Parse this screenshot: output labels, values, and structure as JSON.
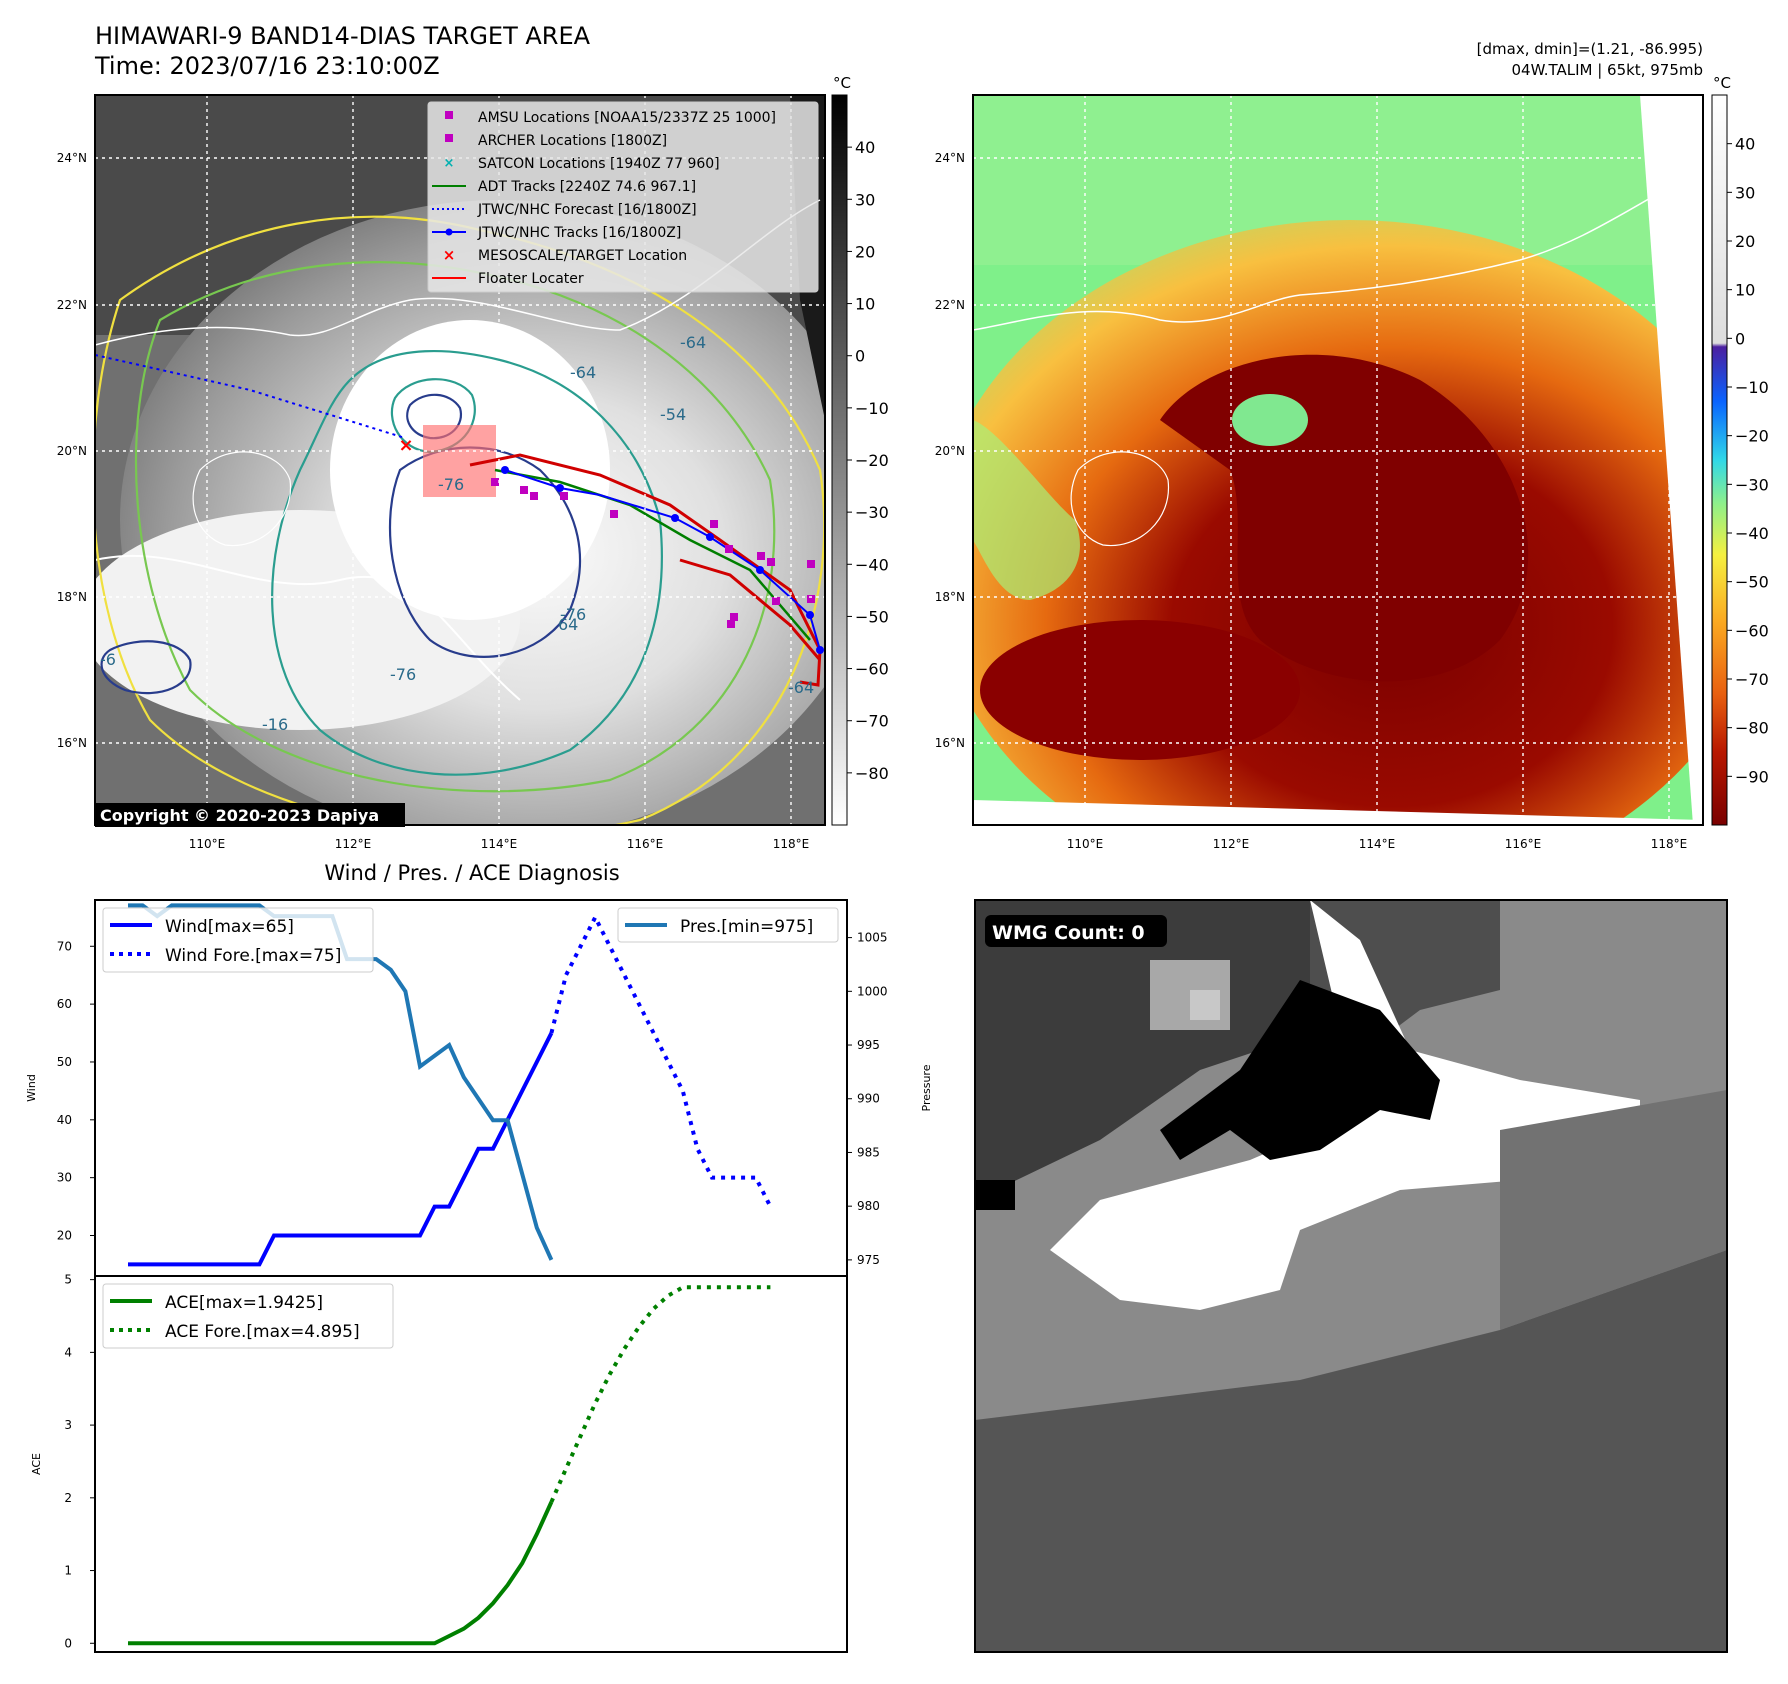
{
  "header": {
    "title": "HIMAWARI-9 BAND14-DIAS TARGET AREA",
    "time": "Time: 2023/07/16 23:10:00Z",
    "dminmax": "[dmax, dmin]=(1.21, -86.995)",
    "storm": "04W.TALIM | 65kt, 975mb"
  },
  "map": {
    "lon_ticks": [
      "110°E",
      "112°E",
      "114°E",
      "116°E",
      "118°E"
    ],
    "lat_ticks": [
      "24°N",
      "22°N",
      "20°N",
      "18°N",
      "16°N"
    ],
    "copyright": "Copyright © 2020-2023 Dapiya",
    "colorbar_unit": "°C",
    "gray_cbar_ticks": [
      "40",
      "30",
      "20",
      "10",
      "0",
      "−10",
      "−20",
      "−30",
      "−40",
      "−50",
      "−60",
      "−70",
      "−80"
    ],
    "color_cbar_ticks": [
      "40",
      "30",
      "20",
      "10",
      "0",
      "−10",
      "−20",
      "−30",
      "−40",
      "−50",
      "−60",
      "−70",
      "−80",
      "−90"
    ],
    "contour_labels": [
      "-64",
      "-54",
      "-64",
      "-16",
      "-76",
      "-76",
      "-76",
      "-6",
      "64",
      "-64"
    ],
    "legend": [
      {
        "label": "AMSU Locations [NOAA15/2337Z 25 1000]",
        "marker": "square",
        "color": "#c000c0"
      },
      {
        "label": "ARCHER Locations [1800Z]",
        "marker": "square",
        "color": "#c000c0"
      },
      {
        "label": "SATCON Locations [1940Z 77 960]",
        "marker": "x",
        "color": "#00b0b0"
      },
      {
        "label": "ADT Tracks [2240Z 74.6 967.1]",
        "marker": "line",
        "color": "#007f00"
      },
      {
        "label": "JTWC/NHC Forecast [16/1800Z]",
        "marker": "dotted",
        "color": "#0000ff"
      },
      {
        "label": "JTWC/NHC Tracks [16/1800Z]",
        "marker": "line-dot",
        "color": "#0000ff"
      },
      {
        "label": "MESOSCALE/TARGET Location",
        "marker": "x",
        "color": "#ff0000"
      },
      {
        "label": "Floater Locater",
        "marker": "line",
        "color": "#ff0000"
      }
    ]
  },
  "diag": {
    "title": "Wind / Pres. / ACE Diagnosis",
    "wind_ylabel": "Wind",
    "pres_ylabel": "Pressure",
    "ace_ylabel": "ACE",
    "legend_wind": "Wind[max=65]",
    "legend_wind_fore": "Wind Fore.[max=75]",
    "legend_pres": "Pres.[min=975]",
    "legend_ace": "ACE[max=1.9425]",
    "legend_ace_fore": "ACE Fore.[max=4.895]"
  },
  "wmg": {
    "label": "WMG Count: 0"
  },
  "colors": {
    "wind": "#0000ff",
    "pressure": "#1f77b4",
    "ace": "#008000",
    "contour_yellow": "#f0e040",
    "contour_green": "#78c850",
    "contour_teal": "#2a9d8f",
    "contour_navy": "#283c8c"
  },
  "chart_data": [
    {
      "type": "line",
      "name": "wind",
      "x": [
        0,
        1,
        2,
        3,
        4,
        5,
        6,
        7,
        8,
        9,
        10,
        11,
        12,
        13,
        14,
        15,
        16,
        17,
        18,
        19,
        20,
        21,
        22,
        23,
        24,
        25,
        26,
        27,
        28,
        29
      ],
      "series": [
        {
          "name": "Wind[max=65]",
          "style": "solid",
          "x": [
            0,
            1,
            2,
            3,
            4,
            5,
            6,
            7,
            8,
            9,
            10,
            11,
            12,
            13,
            14,
            15,
            16,
            17,
            18,
            19,
            20,
            21,
            22,
            23,
            24,
            25,
            26,
            27,
            28,
            29
          ],
          "values": [
            15,
            15,
            15,
            15,
            15,
            15,
            15,
            15,
            15,
            15,
            20,
            20,
            20,
            20,
            20,
            20,
            20,
            20,
            20,
            20,
            20,
            25,
            25,
            30,
            35,
            35,
            40,
            45,
            50,
            55
          ]
        },
        {
          "name": "Wind Fore.[max=75]",
          "style": "dotted",
          "x": [
            29,
            30,
            31,
            32,
            33,
            34,
            35,
            36,
            37,
            38,
            39,
            40,
            41,
            42,
            43,
            44
          ],
          "values": [
            55,
            65,
            70,
            75,
            70,
            65,
            60,
            55,
            50,
            45,
            35,
            30,
            30,
            30,
            30,
            25
          ]
        }
      ],
      "ylabel": "Wind",
      "ylim": [
        13,
        78
      ],
      "yticks": [
        20,
        30,
        40,
        50,
        60,
        70
      ]
    },
    {
      "type": "line",
      "name": "pressure",
      "series": [
        {
          "name": "Pres.[min=975]",
          "x": [
            0,
            1,
            2,
            3,
            4,
            5,
            6,
            7,
            8,
            9,
            10,
            11,
            12,
            13,
            14,
            15,
            16,
            17,
            18,
            19,
            20,
            21,
            22,
            23,
            24,
            25,
            26,
            27,
            28,
            29
          ],
          "values": [
            1008,
            1008,
            1007,
            1008,
            1008,
            1008,
            1008,
            1008,
            1008,
            1008,
            1007,
            1007,
            1007,
            1007,
            1007,
            1003,
            1003,
            1003,
            1002,
            1000,
            993,
            994,
            995,
            992,
            990,
            988,
            988,
            983,
            978,
            975
          ]
        }
      ],
      "ylabel": "Pressure",
      "ylim": [
        973.5,
        1008.5
      ],
      "yticks": [
        975,
        980,
        985,
        990,
        995,
        1000,
        1005
      ]
    },
    {
      "type": "line",
      "name": "ace",
      "series": [
        {
          "name": "ACE[max=1.9425]",
          "style": "solid",
          "x": [
            0,
            2,
            4,
            6,
            8,
            10,
            12,
            14,
            16,
            18,
            20,
            21,
            22,
            23,
            24,
            25,
            26,
            27,
            28,
            29
          ],
          "values": [
            0,
            0,
            0,
            0,
            0,
            0,
            0,
            0,
            0,
            0,
            0,
            0,
            0.1,
            0.2,
            0.35,
            0.55,
            0.8,
            1.1,
            1.5,
            1.9425
          ]
        },
        {
          "name": "ACE Fore.[max=4.895]",
          "style": "dotted",
          "x": [
            29,
            30,
            31,
            32,
            33,
            34,
            35,
            36,
            37,
            38,
            39,
            40,
            41,
            42,
            43,
            44
          ],
          "values": [
            1.9425,
            2.4,
            2.85,
            3.3,
            3.7,
            4.05,
            4.35,
            4.6,
            4.78,
            4.895,
            4.895,
            4.895,
            4.895,
            4.895,
            4.895,
            4.895
          ]
        }
      ],
      "ylabel": "ACE",
      "ylim": [
        -0.12,
        5.05
      ],
      "yticks": [
        0,
        1,
        2,
        3,
        4,
        5
      ]
    }
  ]
}
